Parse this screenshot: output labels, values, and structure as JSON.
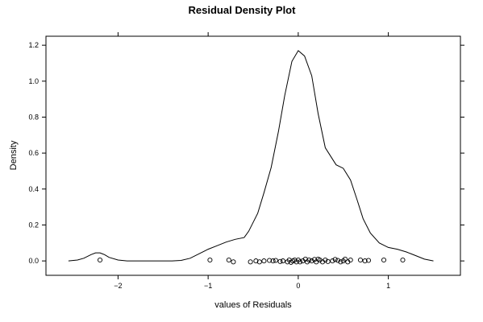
{
  "chart_data": {
    "type": "line",
    "title": "Residual Density Plot",
    "xlabel": "values of Residuals",
    "ylabel": "Density",
    "xlim": [
      -2.8,
      1.8
    ],
    "ylim": [
      -0.08,
      1.25
    ],
    "x_ticks": [
      -2,
      -1,
      0,
      1
    ],
    "x_tick_labels": [
      "−2",
      "−1",
      "0",
      "1"
    ],
    "y_ticks": [
      0.0,
      0.2,
      0.4,
      0.6,
      0.8,
      1.0,
      1.2
    ],
    "y_tick_labels": [
      "0.0",
      "0.2",
      "0.4",
      "0.6",
      "0.8",
      "1.0",
      "1.2"
    ],
    "grid": false,
    "series": [
      {
        "type": "line",
        "x": [
          -2.55,
          -2.45,
          -2.38,
          -2.3,
          -2.25,
          -2.2,
          -2.15,
          -2.1,
          -2.0,
          -1.9,
          -1.8,
          -1.6,
          -1.4,
          -1.3,
          -1.2,
          -1.1,
          -1.0,
          -0.9,
          -0.8,
          -0.7,
          -0.6,
          -0.55,
          -0.45,
          -0.38,
          -0.3,
          -0.22,
          -0.15,
          -0.07,
          0.0,
          0.07,
          0.15,
          0.22,
          0.3,
          0.42,
          0.5,
          0.58,
          0.65,
          0.72,
          0.8,
          0.9,
          1.0,
          1.1,
          1.2,
          1.3,
          1.4,
          1.5
        ],
        "y": [
          0.0,
          0.005,
          0.015,
          0.035,
          0.045,
          0.045,
          0.035,
          0.02,
          0.005,
          0.0,
          0.0,
          0.0,
          0.0,
          0.003,
          0.015,
          0.04,
          0.065,
          0.085,
          0.105,
          0.12,
          0.13,
          0.165,
          0.265,
          0.38,
          0.52,
          0.72,
          0.92,
          1.11,
          1.17,
          1.14,
          1.03,
          0.82,
          0.63,
          0.535,
          0.515,
          0.45,
          0.345,
          0.235,
          0.155,
          0.1,
          0.075,
          0.065,
          0.05,
          0.03,
          0.01,
          0.0
        ]
      },
      {
        "type": "scatter",
        "marker": "open-circle",
        "x": [
          -2.2,
          -0.98,
          -0.77,
          -0.72,
          -0.53,
          -0.47,
          -0.43,
          -0.38,
          -0.32,
          -0.28,
          -0.25,
          -0.2,
          -0.17,
          -0.12,
          -0.1,
          -0.08,
          -0.06,
          -0.04,
          -0.02,
          0.0,
          0.02,
          0.05,
          0.08,
          0.1,
          0.12,
          0.15,
          0.18,
          0.2,
          0.22,
          0.24,
          0.27,
          0.3,
          0.33,
          0.38,
          0.41,
          0.44,
          0.47,
          0.5,
          0.52,
          0.55,
          0.58,
          0.69,
          0.74,
          0.78,
          0.95,
          1.16
        ],
        "y": [
          0.005,
          0.005,
          0.005,
          -0.005,
          -0.005,
          0.0,
          -0.005,
          0.0,
          0.003,
          0.0,
          0.003,
          -0.003,
          0.0,
          -0.005,
          0.005,
          -0.008,
          0.0,
          0.005,
          -0.005,
          0.005,
          -0.005,
          0.0,
          0.01,
          -0.005,
          0.005,
          0.0,
          0.008,
          -0.005,
          0.01,
          0.005,
          -0.005,
          0.005,
          -0.003,
          0.0,
          0.008,
          0.003,
          -0.005,
          0.0,
          0.01,
          -0.005,
          0.005,
          0.005,
          0.0,
          0.003,
          0.005,
          0.005
        ]
      }
    ]
  }
}
